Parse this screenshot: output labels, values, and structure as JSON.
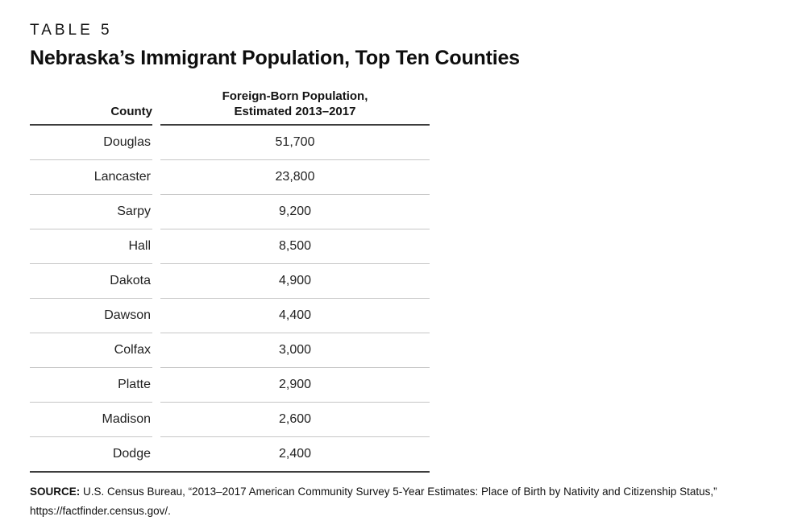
{
  "page": {
    "kicker": "TABLE 5",
    "title": "Nebraska’s Immigrant Population, Top Ten Counties"
  },
  "table": {
    "columns": {
      "county": "County",
      "value_line1": "Foreign-Born Population,",
      "value_line2": "Estimated 2013–2017"
    },
    "rows": [
      {
        "county": "Douglas",
        "value": "51,700"
      },
      {
        "county": "Lancaster",
        "value": "23,800"
      },
      {
        "county": "Sarpy",
        "value": "9,200"
      },
      {
        "county": "Hall",
        "value": "8,500"
      },
      {
        "county": "Dakota",
        "value": "4,900"
      },
      {
        "county": "Dawson",
        "value": "4,400"
      },
      {
        "county": "Colfax",
        "value": "3,000"
      },
      {
        "county": "Platte",
        "value": "2,900"
      },
      {
        "county": "Madison",
        "value": "2,600"
      },
      {
        "county": "Dodge",
        "value": "2,400"
      }
    ]
  },
  "source": {
    "label": "SOURCE:",
    "line1": "U.S. Census Bureau, “2013–2017 American Community Survey 5-Year Estimates: Place of Birth by Nativity and Citizenship Status,”",
    "line2": "https://factfinder.census.gov/."
  },
  "colors": {
    "text": "#1a1a1a",
    "rule_dark": "#3d3d3d",
    "rule_light": "#c6c6c6",
    "background": "#ffffff"
  },
  "chart_data": {
    "type": "table",
    "title": "Nebraska's Immigrant Population, Top Ten Counties",
    "columns": [
      "County",
      "Foreign-Born Population, Estimated 2013–2017"
    ],
    "categories": [
      "Douglas",
      "Lancaster",
      "Sarpy",
      "Hall",
      "Dakota",
      "Dawson",
      "Colfax",
      "Platte",
      "Madison",
      "Dodge"
    ],
    "values": [
      51700,
      23800,
      9200,
      8500,
      4900,
      4400,
      3000,
      2900,
      2600,
      2400
    ]
  }
}
